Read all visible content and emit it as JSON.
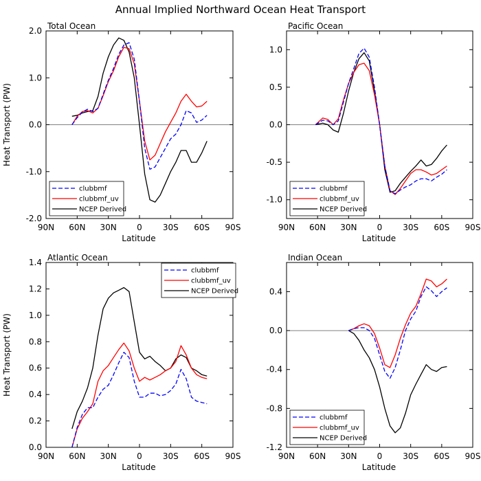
{
  "figure_title": "Annual Implied Northward Ocean Heat Transport",
  "colors": {
    "clubbmf": "#0000ff",
    "clubbmf_uv": "#ff0000",
    "ncep": "#000000",
    "zero_line": "#555555"
  },
  "chart_data": [
    {
      "type": "line",
      "title": "Total Ocean",
      "xlabel": "Latitude",
      "ylabel": "Heat Transport (PW)",
      "xlim": [
        90,
        -90
      ],
      "ylim": [
        -2.0,
        2.0
      ],
      "xticks": [
        90,
        60,
        30,
        0,
        -30,
        -60,
        -90
      ],
      "xtick_labels": [
        "90N",
        "60N",
        "30N",
        "0",
        "30S",
        "60S",
        "90S"
      ],
      "yticks": [
        -2.0,
        -1.0,
        0.0,
        1.0,
        2.0
      ],
      "ytick_labels": [
        "-2.0",
        "-1.0",
        "0.0",
        "1.0",
        "2.0"
      ],
      "legend_position": "bottom-left",
      "series": [
        {
          "name": "clubbmf",
          "style": "dashed",
          "color_key": "clubbmf",
          "x": [
            65,
            60,
            55,
            50,
            45,
            40,
            35,
            30,
            25,
            20,
            15,
            10,
            5,
            0,
            -5,
            -10,
            -15,
            -20,
            -25,
            -30,
            -35,
            -40,
            -45,
            -50,
            -55,
            -60,
            -65
          ],
          "y": [
            0.0,
            0.15,
            0.27,
            0.33,
            0.28,
            0.35,
            0.65,
            0.95,
            1.2,
            1.5,
            1.7,
            1.75,
            1.4,
            0.5,
            -0.5,
            -0.95,
            -0.9,
            -0.7,
            -0.5,
            -0.3,
            -0.2,
            0.0,
            0.3,
            0.25,
            0.05,
            0.1,
            0.2
          ]
        },
        {
          "name": "clubbmf_uv",
          "style": "solid",
          "color_key": "clubbmf_uv",
          "x": [
            65,
            60,
            55,
            50,
            45,
            40,
            35,
            30,
            25,
            20,
            15,
            10,
            5,
            0,
            -5,
            -10,
            -15,
            -20,
            -25,
            -30,
            -35,
            -40,
            -45,
            -50,
            -55,
            -60,
            -65
          ],
          "y": [
            0.0,
            0.18,
            0.28,
            0.3,
            0.25,
            0.35,
            0.62,
            0.92,
            1.15,
            1.45,
            1.65,
            1.62,
            1.3,
            0.5,
            -0.35,
            -0.75,
            -0.65,
            -0.4,
            -0.15,
            0.05,
            0.25,
            0.5,
            0.65,
            0.5,
            0.38,
            0.4,
            0.5
          ]
        },
        {
          "name": "NCEP Derived",
          "style": "solid",
          "color_key": "ncep",
          "x": [
            65,
            60,
            55,
            50,
            45,
            40,
            35,
            30,
            25,
            20,
            15,
            10,
            5,
            0,
            -5,
            -10,
            -15,
            -20,
            -25,
            -30,
            -35,
            -40,
            -45,
            -50,
            -55,
            -60,
            -65
          ],
          "y": [
            0.18,
            0.2,
            0.25,
            0.28,
            0.3,
            0.6,
            1.1,
            1.45,
            1.7,
            1.85,
            1.8,
            1.55,
            1.0,
            0.0,
            -1.05,
            -1.6,
            -1.65,
            -1.5,
            -1.25,
            -1.0,
            -0.8,
            -0.55,
            -0.55,
            -0.8,
            -0.8,
            -0.6,
            -0.35
          ]
        }
      ]
    },
    {
      "type": "line",
      "title": "Pacific Ocean",
      "xlabel": "Latitude",
      "ylabel": "",
      "xlim": [
        90,
        -90
      ],
      "ylim": [
        -1.25,
        1.25
      ],
      "xticks": [
        90,
        60,
        30,
        0,
        -30,
        -60,
        -90
      ],
      "xtick_labels": [
        "90N",
        "60N",
        "30N",
        "0",
        "30S",
        "60S",
        "90S"
      ],
      "yticks": [
        -1.0,
        -0.5,
        0.0,
        0.5,
        1.0
      ],
      "ytick_labels": [
        "-1.0",
        "-0.5",
        "0.0",
        "0.5",
        "1.0"
      ],
      "legend_position": "bottom-left",
      "series": [
        {
          "name": "clubbmf",
          "style": "dashed",
          "color_key": "clubbmf",
          "x": [
            62,
            55,
            50,
            45,
            40,
            35,
            30,
            25,
            20,
            15,
            10,
            5,
            0,
            -5,
            -10,
            -15,
            -20,
            -25,
            -30,
            -35,
            -40,
            -45,
            -50,
            -55,
            -60,
            -65
          ],
          "y": [
            0.0,
            0.06,
            0.05,
            0.0,
            0.05,
            0.3,
            0.55,
            0.75,
            0.95,
            1.02,
            0.9,
            0.5,
            0.0,
            -0.55,
            -0.88,
            -0.92,
            -0.87,
            -0.83,
            -0.8,
            -0.75,
            -0.72,
            -0.72,
            -0.75,
            -0.7,
            -0.66,
            -0.6
          ]
        },
        {
          "name": "clubbmf_uv",
          "style": "solid",
          "color_key": "clubbmf_uv",
          "x": [
            62,
            55,
            50,
            45,
            40,
            35,
            30,
            25,
            20,
            15,
            10,
            5,
            0,
            -5,
            -10,
            -15,
            -20,
            -25,
            -30,
            -35,
            -40,
            -45,
            -50,
            -55,
            -60,
            -65
          ],
          "y": [
            0.0,
            0.09,
            0.07,
            0.0,
            0.08,
            0.33,
            0.55,
            0.7,
            0.8,
            0.82,
            0.72,
            0.4,
            0.0,
            -0.55,
            -0.88,
            -0.93,
            -0.85,
            -0.75,
            -0.65,
            -0.6,
            -0.6,
            -0.63,
            -0.67,
            -0.65,
            -0.6,
            -0.55
          ]
        },
        {
          "name": "NCEP Derived",
          "style": "solid",
          "color_key": "ncep",
          "x": [
            62,
            55,
            50,
            45,
            40,
            35,
            30,
            25,
            20,
            15,
            10,
            5,
            0,
            -5,
            -10,
            -15,
            -20,
            -25,
            -30,
            -35,
            -40,
            -45,
            -50,
            -55,
            -60,
            -65
          ],
          "y": [
            0.0,
            0.02,
            0.0,
            -0.07,
            -0.1,
            0.15,
            0.45,
            0.7,
            0.88,
            0.96,
            0.85,
            0.45,
            0.0,
            -0.6,
            -0.9,
            -0.88,
            -0.78,
            -0.7,
            -0.62,
            -0.55,
            -0.47,
            -0.55,
            -0.53,
            -0.45,
            -0.35,
            -0.27
          ]
        }
      ]
    },
    {
      "type": "line",
      "title": "Atlantic Ocean",
      "xlabel": "Latitude",
      "ylabel": "Heat Transport (PW)",
      "xlim": [
        90,
        -90
      ],
      "ylim": [
        0.0,
        1.4
      ],
      "xticks": [
        90,
        60,
        30,
        0,
        -30,
        -60,
        -90
      ],
      "xtick_labels": [
        "90N",
        "60N",
        "30N",
        "0",
        "30S",
        "60S",
        "90S"
      ],
      "yticks": [
        0.0,
        0.2,
        0.4,
        0.6,
        0.8,
        1.0,
        1.2,
        1.4
      ],
      "ytick_labels": [
        "0.0",
        "0.2",
        "0.4",
        "0.6",
        "0.8",
        "1.0",
        "1.2",
        "1.4"
      ],
      "legend_position": "top-right",
      "series": [
        {
          "name": "clubbmf",
          "style": "dashed",
          "color_key": "clubbmf",
          "x": [
            65,
            60,
            55,
            50,
            45,
            40,
            35,
            30,
            25,
            20,
            15,
            10,
            5,
            0,
            -5,
            -10,
            -15,
            -20,
            -25,
            -30,
            -35,
            -40,
            -45,
            -50,
            -55,
            -60,
            -65
          ],
          "y": [
            0.0,
            0.15,
            0.25,
            0.3,
            0.3,
            0.38,
            0.44,
            0.47,
            0.55,
            0.64,
            0.72,
            0.68,
            0.5,
            0.38,
            0.38,
            0.41,
            0.41,
            0.39,
            0.4,
            0.43,
            0.48,
            0.59,
            0.52,
            0.38,
            0.35,
            0.34,
            0.33
          ]
        },
        {
          "name": "clubbmf_uv",
          "style": "solid",
          "color_key": "clubbmf_uv",
          "x": [
            65,
            60,
            55,
            50,
            45,
            40,
            35,
            30,
            25,
            20,
            15,
            10,
            5,
            0,
            -5,
            -10,
            -15,
            -20,
            -25,
            -30,
            -35,
            -40,
            -45,
            -50,
            -55,
            -60,
            -65
          ],
          "y": [
            0.0,
            0.14,
            0.22,
            0.27,
            0.33,
            0.5,
            0.58,
            0.62,
            0.68,
            0.74,
            0.79,
            0.73,
            0.6,
            0.5,
            0.53,
            0.51,
            0.53,
            0.55,
            0.58,
            0.6,
            0.65,
            0.77,
            0.7,
            0.6,
            0.55,
            0.53,
            0.52
          ]
        },
        {
          "name": "NCEP Derived",
          "style": "solid",
          "color_key": "ncep",
          "x": [
            65,
            60,
            55,
            50,
            45,
            40,
            35,
            30,
            25,
            20,
            15,
            10,
            5,
            0,
            -5,
            -10,
            -15,
            -20,
            -25,
            -30,
            -35,
            -40,
            -45,
            -50,
            -55,
            -60,
            -65
          ],
          "y": [
            0.14,
            0.27,
            0.35,
            0.45,
            0.6,
            0.85,
            1.05,
            1.13,
            1.17,
            1.19,
            1.21,
            1.18,
            0.95,
            0.72,
            0.67,
            0.69,
            0.65,
            0.62,
            0.58,
            0.6,
            0.67,
            0.7,
            0.68,
            0.6,
            0.58,
            0.55,
            0.54
          ]
        }
      ]
    },
    {
      "type": "line",
      "title": "Indian Ocean",
      "xlabel": "Latitude",
      "ylabel": "",
      "xlim": [
        90,
        -90
      ],
      "ylim": [
        -1.2,
        0.7
      ],
      "xticks": [
        90,
        60,
        30,
        0,
        -30,
        -60,
        -90
      ],
      "xtick_labels": [
        "90N",
        "60N",
        "30N",
        "0",
        "30S",
        "60S",
        "90S"
      ],
      "yticks": [
        -1.2,
        -0.8,
        -0.4,
        0.0,
        0.4
      ],
      "ytick_labels": [
        "-1.2",
        "-0.8",
        "-0.4",
        "0.0",
        "0.4"
      ],
      "legend_position": "bottom-left",
      "series": [
        {
          "name": "clubbmf",
          "style": "dashed",
          "color_key": "clubbmf",
          "x": [
            30,
            25,
            20,
            15,
            10,
            5,
            0,
            -5,
            -10,
            -15,
            -20,
            -25,
            -30,
            -35,
            -40,
            -45,
            -50,
            -55,
            -60,
            -65
          ],
          "y": [
            0.0,
            0.02,
            0.03,
            0.03,
            0.0,
            -0.08,
            -0.25,
            -0.42,
            -0.49,
            -0.38,
            -0.2,
            0.0,
            0.12,
            0.2,
            0.35,
            0.45,
            0.41,
            0.35,
            0.4,
            0.44
          ]
        },
        {
          "name": "clubbmf_uv",
          "style": "solid",
          "color_key": "clubbmf_uv",
          "x": [
            30,
            25,
            20,
            15,
            10,
            5,
            0,
            -5,
            -10,
            -15,
            -20,
            -25,
            -30,
            -35,
            -40,
            -45,
            -50,
            -55,
            -60,
            -65
          ],
          "y": [
            0.0,
            0.02,
            0.05,
            0.07,
            0.05,
            -0.03,
            -0.18,
            -0.35,
            -0.38,
            -0.25,
            -0.08,
            0.06,
            0.18,
            0.25,
            0.38,
            0.53,
            0.51,
            0.45,
            0.48,
            0.53
          ]
        },
        {
          "name": "NCEP Derived",
          "style": "solid",
          "color_key": "ncep",
          "x": [
            30,
            25,
            20,
            15,
            10,
            5,
            0,
            -5,
            -10,
            -15,
            -20,
            -25,
            -30,
            -35,
            -40,
            -45,
            -50,
            -55,
            -60,
            -65
          ],
          "y": [
            0.0,
            -0.03,
            -0.1,
            -0.2,
            -0.28,
            -0.4,
            -0.58,
            -0.8,
            -0.98,
            -1.05,
            -1.0,
            -0.85,
            -0.66,
            -0.55,
            -0.45,
            -0.35,
            -0.4,
            -0.42,
            -0.38,
            -0.37
          ]
        }
      ]
    }
  ]
}
